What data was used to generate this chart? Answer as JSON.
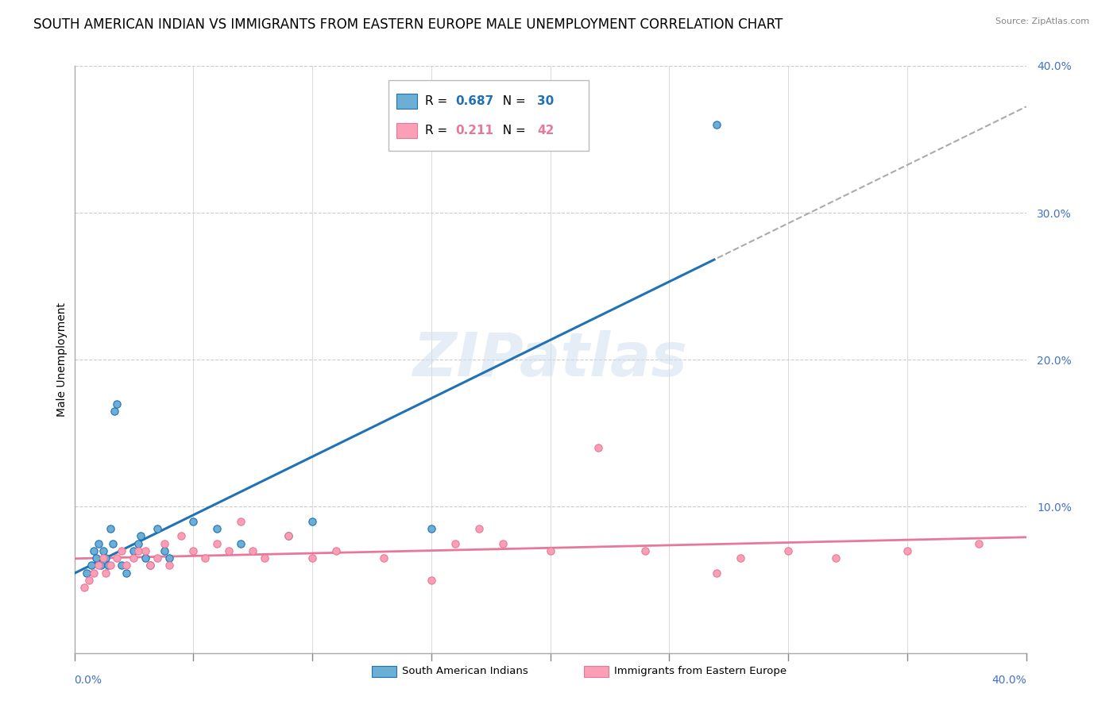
{
  "title": "SOUTH AMERICAN INDIAN VS IMMIGRANTS FROM EASTERN EUROPE MALE UNEMPLOYMENT CORRELATION CHART",
  "source": "Source: ZipAtlas.com",
  "ylabel": "Male Unemployment",
  "watermark": "ZIPatlas",
  "blue_label": "South American Indians",
  "pink_label": "Immigrants from Eastern Europe",
  "blue_R": 0.687,
  "blue_N": 30,
  "pink_R": 0.211,
  "pink_N": 42,
  "blue_color": "#6baed6",
  "pink_color": "#fa9fb5",
  "blue_line_color": "#2171b5",
  "pink_line_color": "#e8789a",
  "regression_ext_color": "#aaaaaa",
  "xlim": [
    0.0,
    0.4
  ],
  "ylim": [
    0.0,
    0.4
  ],
  "yticks": [
    0.0,
    0.1,
    0.2,
    0.3,
    0.4
  ],
  "ytick_labels": [
    "",
    "10.0%",
    "20.0%",
    "30.0%",
    "40.0%"
  ],
  "blue_scatter_x": [
    0.005,
    0.007,
    0.008,
    0.009,
    0.01,
    0.011,
    0.012,
    0.013,
    0.014,
    0.015,
    0.016,
    0.017,
    0.018,
    0.02,
    0.022,
    0.025,
    0.027,
    0.028,
    0.03,
    0.032,
    0.035,
    0.038,
    0.04,
    0.05,
    0.06,
    0.07,
    0.09,
    0.1,
    0.15,
    0.27
  ],
  "blue_scatter_y": [
    0.055,
    0.06,
    0.07,
    0.065,
    0.075,
    0.06,
    0.07,
    0.065,
    0.06,
    0.085,
    0.075,
    0.165,
    0.17,
    0.06,
    0.055,
    0.07,
    0.075,
    0.08,
    0.065,
    0.06,
    0.085,
    0.07,
    0.065,
    0.09,
    0.085,
    0.075,
    0.08,
    0.09,
    0.085,
    0.36
  ],
  "pink_scatter_x": [
    0.004,
    0.006,
    0.008,
    0.01,
    0.012,
    0.013,
    0.015,
    0.018,
    0.02,
    0.022,
    0.025,
    0.027,
    0.03,
    0.032,
    0.035,
    0.038,
    0.04,
    0.045,
    0.05,
    0.055,
    0.06,
    0.065,
    0.07,
    0.075,
    0.08,
    0.09,
    0.1,
    0.11,
    0.13,
    0.15,
    0.16,
    0.17,
    0.18,
    0.2,
    0.22,
    0.24,
    0.27,
    0.28,
    0.3,
    0.32,
    0.35,
    0.38
  ],
  "pink_scatter_y": [
    0.045,
    0.05,
    0.055,
    0.06,
    0.065,
    0.055,
    0.06,
    0.065,
    0.07,
    0.06,
    0.065,
    0.07,
    0.07,
    0.06,
    0.065,
    0.075,
    0.06,
    0.08,
    0.07,
    0.065,
    0.075,
    0.07,
    0.09,
    0.07,
    0.065,
    0.08,
    0.065,
    0.07,
    0.065,
    0.05,
    0.075,
    0.085,
    0.075,
    0.07,
    0.14,
    0.07,
    0.055,
    0.065,
    0.07,
    0.065,
    0.07,
    0.075
  ],
  "background_color": "#ffffff",
  "grid_color": "#cccccc",
  "tick_color": "#4472c4",
  "title_fontsize": 12,
  "axis_label_fontsize": 10,
  "legend_fontsize": 11,
  "source_fontsize": 8
}
